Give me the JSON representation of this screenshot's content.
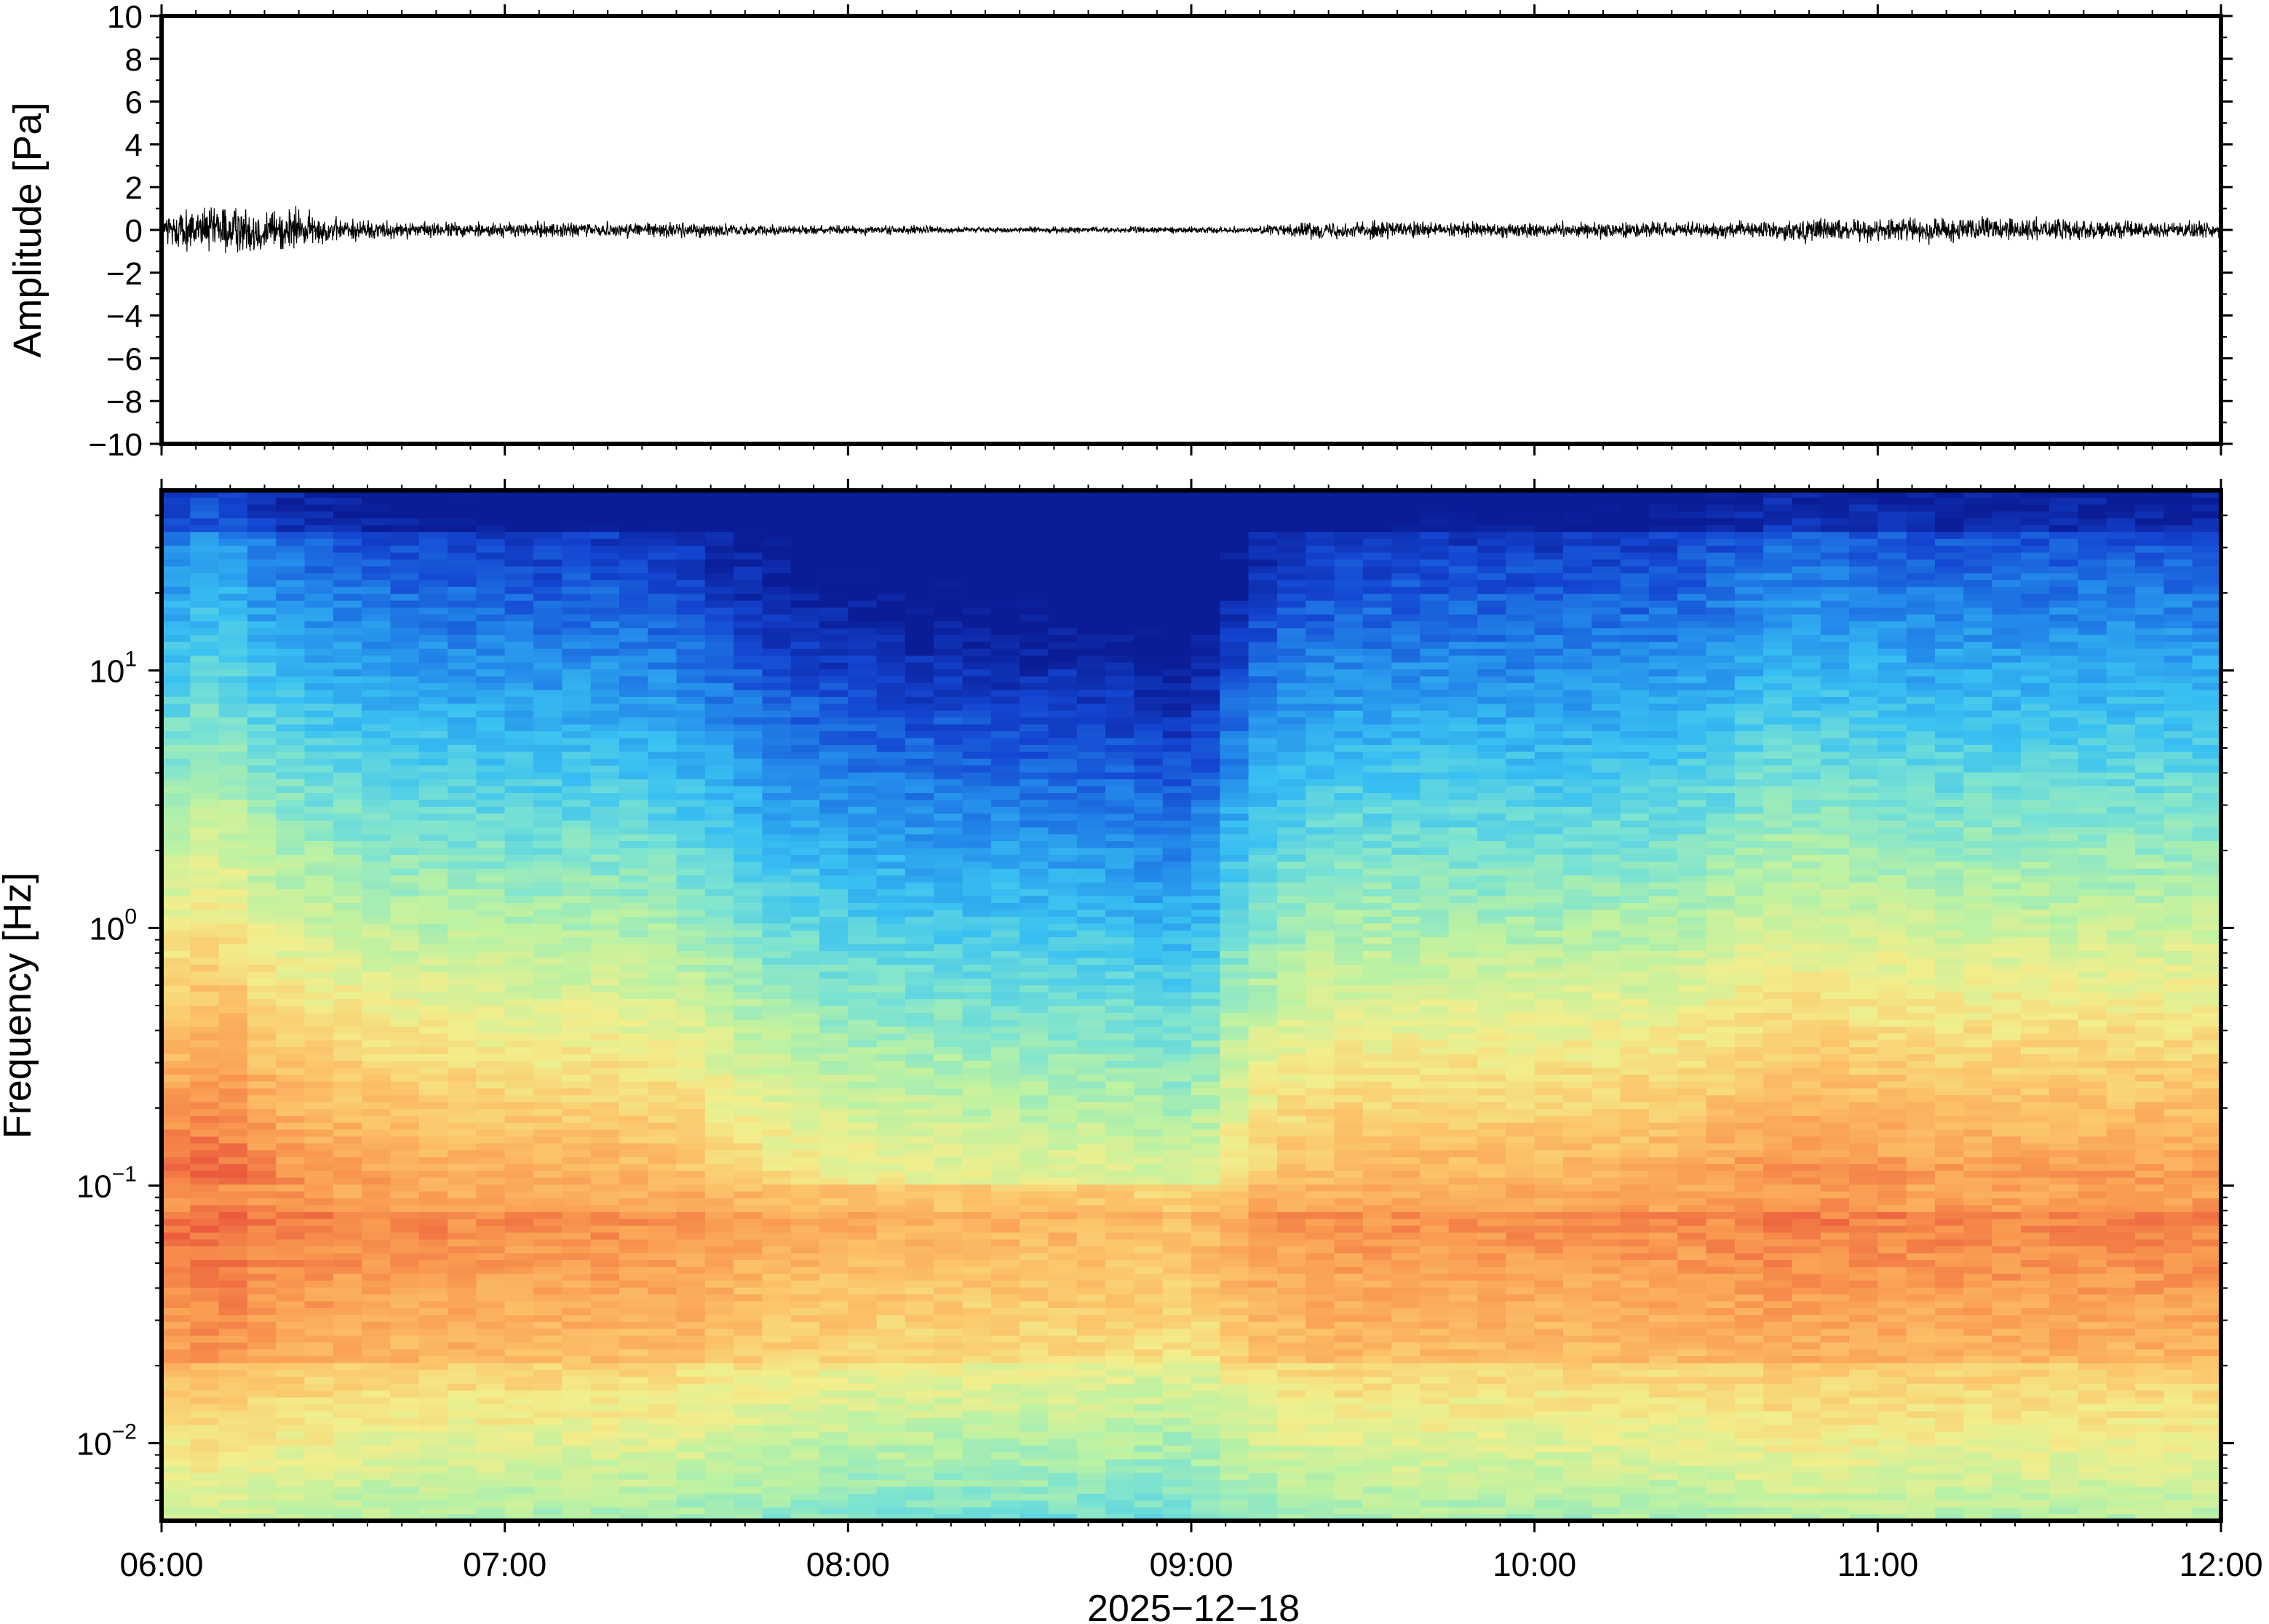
{
  "chart_data": [
    {
      "type": "line",
      "panel": "waveform",
      "ylabel": "Amplitude [Pa]",
      "ylim": [
        -10,
        10
      ],
      "yticks": [
        -10,
        -8,
        -6,
        -4,
        -2,
        0,
        2,
        4,
        6,
        8,
        10
      ],
      "ytick_labels": [
        "−10",
        "−8",
        "−6",
        "−4",
        "−2",
        "0",
        "2",
        "4",
        "6",
        "8",
        "10"
      ],
      "xlim": [
        "06:00",
        "12:00"
      ],
      "envelope": {
        "x": [
          "06:00",
          "06:10",
          "06:20",
          "06:30",
          "06:40",
          "06:50",
          "07:00",
          "07:10",
          "07:20",
          "07:30",
          "07:40",
          "07:50",
          "08:00",
          "08:10",
          "08:20",
          "08:30",
          "08:40",
          "08:50",
          "09:00",
          "09:10",
          "09:20",
          "09:30",
          "09:40",
          "09:50",
          "10:00",
          "10:10",
          "10:20",
          "10:30",
          "10:40",
          "10:50",
          "11:00",
          "11:10",
          "11:20",
          "11:30",
          "11:40",
          "11:50",
          "12:00"
        ],
        "peak_abs": [
          1.2,
          1.6,
          1.5,
          0.8,
          0.6,
          0.5,
          0.5,
          0.5,
          0.5,
          0.5,
          0.4,
          0.3,
          0.3,
          0.3,
          0.2,
          0.2,
          0.2,
          0.2,
          0.2,
          0.2,
          0.5,
          0.6,
          0.5,
          0.5,
          0.5,
          0.5,
          0.5,
          0.5,
          0.6,
          0.8,
          0.7,
          0.8,
          0.8,
          0.7,
          0.6,
          0.5,
          0.5
        ]
      },
      "line_color": "#000000"
    },
    {
      "type": "heatmap",
      "panel": "spectrogram",
      "ylabel": "Frequency [Hz]",
      "yscale": "log",
      "ylim": [
        0.005,
        50
      ],
      "yticks": [
        {
          "base": "10",
          "exp": "−2",
          "value": 0.01
        },
        {
          "base": "10",
          "exp": "−1",
          "value": 0.1
        },
        {
          "base": "10",
          "exp": "0",
          "value": 1
        },
        {
          "base": "10",
          "exp": "1",
          "value": 10
        }
      ],
      "xlabel": "2025−12−18",
      "xticks": [
        "06:00",
        "07:00",
        "08:00",
        "09:00",
        "10:00",
        "11:00",
        "12:00"
      ],
      "colormap": [
        "#0a1c96",
        "#1446d2",
        "#2389ea",
        "#39c1f2",
        "#7be3d2",
        "#bdf2a2",
        "#f2ee8c",
        "#fcc56a",
        "#f99a50",
        "#eb5a3c"
      ],
      "time_windows": 72,
      "activity": [
        0.95,
        1.0,
        0.98,
        0.9,
        0.85,
        0.82,
        0.8,
        0.78,
        0.76,
        0.75,
        0.74,
        0.73,
        0.72,
        0.71,
        0.72,
        0.72,
        0.7,
        0.69,
        0.65,
        0.6,
        0.55,
        0.5,
        0.48,
        0.45,
        0.43,
        0.42,
        0.4,
        0.4,
        0.38,
        0.38,
        0.37,
        0.37,
        0.36,
        0.35,
        0.32,
        0.3,
        0.35,
        0.5,
        0.6,
        0.65,
        0.68,
        0.7,
        0.7,
        0.7,
        0.71,
        0.7,
        0.7,
        0.7,
        0.7,
        0.71,
        0.72,
        0.72,
        0.73,
        0.75,
        0.78,
        0.82,
        0.85,
        0.85,
        0.84,
        0.83,
        0.82,
        0.8,
        0.8,
        0.8,
        0.8,
        0.8,
        0.8,
        0.8,
        0.8,
        0.8,
        0.8,
        0.8
      ]
    }
  ]
}
